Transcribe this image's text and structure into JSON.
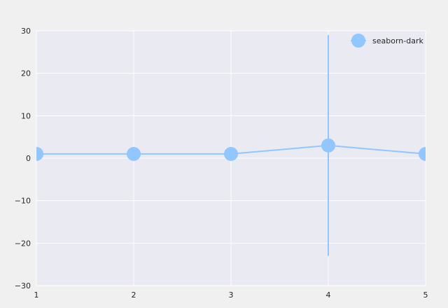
{
  "chart_data": {
    "type": "line",
    "title": "",
    "xlabel": "",
    "ylabel": "",
    "x": [
      1,
      2,
      3,
      4,
      5
    ],
    "xlim": [
      1,
      5
    ],
    "ylim": [
      -30,
      30
    ],
    "xticks": [
      1,
      2,
      3,
      4,
      5
    ],
    "yticks": [
      -30,
      -20,
      -10,
      0,
      10,
      20,
      30
    ],
    "xtick_labels": [
      "1",
      "2",
      "3",
      "4",
      "5"
    ],
    "ytick_labels": [
      "−30",
      "−20",
      "−10",
      "0",
      "10",
      "20",
      "30"
    ],
    "grid": true,
    "legend_position": "top-right",
    "series": [
      {
        "name": "seaborn-dark",
        "values": [
          1,
          1,
          1,
          3,
          1
        ],
        "error": [
          null,
          null,
          null,
          26,
          null
        ],
        "color": "#92c6ff",
        "marker": "circle"
      }
    ],
    "colors": {
      "figure_background": "#f0f0f0",
      "axes_background": "#eaeaf2",
      "grid": "#ffffff",
      "text": "#262626"
    }
  }
}
